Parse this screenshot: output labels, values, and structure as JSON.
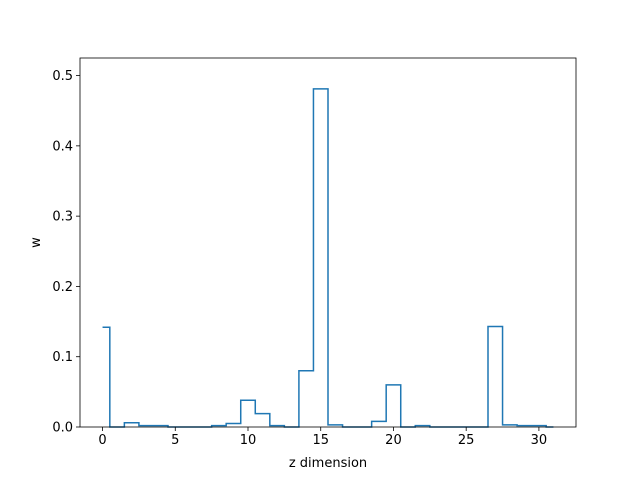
{
  "chart_data": {
    "type": "line",
    "drawstyle": "steps-mid",
    "title": "",
    "xlabel": "z dimension",
    "ylabel": "w",
    "xlim": [
      -1.55,
      32.55
    ],
    "ylim": [
      0,
      0.525
    ],
    "x_ticks": [
      0,
      5,
      10,
      15,
      20,
      25,
      30
    ],
    "y_ticks": [
      0.0,
      0.1,
      0.2,
      0.3,
      0.4,
      0.5
    ],
    "x_tick_labels": [
      "0",
      "5",
      "10",
      "15",
      "20",
      "25",
      "30"
    ],
    "y_tick_labels": [
      "0.0",
      "0.1",
      "0.2",
      "0.3",
      "0.4",
      "0.5"
    ],
    "grid": false,
    "series": [
      {
        "color": "#1f77b4",
        "x": [
          0,
          1,
          2,
          3,
          4,
          5,
          6,
          7,
          8,
          9,
          10,
          11,
          12,
          13,
          14,
          15,
          16,
          17,
          18,
          19,
          20,
          21,
          22,
          23,
          24,
          25,
          26,
          27,
          28,
          29,
          30,
          31
        ],
        "y": [
          0.142,
          0.0,
          0.006,
          0.002,
          0.002,
          0.0,
          0.0,
          0.0,
          0.002,
          0.005,
          0.038,
          0.019,
          0.002,
          0.0,
          0.08,
          0.481,
          0.003,
          0.0,
          0.0,
          0.008,
          0.06,
          0.0,
          0.002,
          0.0,
          0.0,
          0.0,
          0.0,
          0.143,
          0.003,
          0.002,
          0.002,
          0.0
        ]
      }
    ]
  }
}
